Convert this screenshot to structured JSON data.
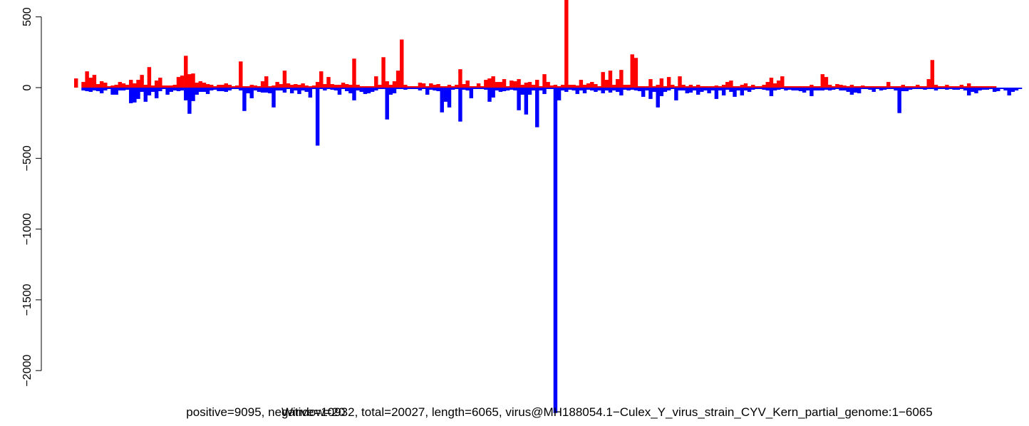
{
  "chart_data": {
    "type": "bar",
    "title": "",
    "xlabel": "positive=9095, negative=10932, total=20027, length=6065, virus@MH188054.1−Culex_Y_virus_strain_CYV_Kern_partial_genome:1−6065",
    "sub_label": "Window=20",
    "ylabel": "",
    "xlim": [
      0,
      6065
    ],
    "ylim": [
      -2300,
      650
    ],
    "yticks": [
      500,
      0,
      -500,
      -1000,
      -1500,
      -2000
    ],
    "ytick_labels": [
      "500",
      "0",
      "−500",
      "−1000",
      "−1500",
      "−2000"
    ],
    "colors": {
      "positive": "#ff0000",
      "negative": "#0000ff"
    },
    "series": [
      {
        "name": "positive",
        "color": "#ff0000",
        "values": [
          65,
          0,
          40,
          115,
          70,
          90,
          25,
          45,
          35,
          10,
          15,
          20,
          40,
          30,
          20,
          55,
          30,
          55,
          90,
          20,
          145,
          15,
          50,
          70,
          15,
          15,
          15,
          20,
          75,
          85,
          225,
          95,
          100,
          35,
          45,
          35,
          25,
          20,
          10,
          20,
          20,
          30,
          20,
          10,
          15,
          185,
          10,
          10,
          20,
          15,
          10,
          45,
          80,
          10,
          15,
          40,
          25,
          120,
          30,
          20,
          25,
          20,
          30,
          15,
          10,
          15,
          40,
          115,
          25,
          75,
          25,
          20,
          20,
          35,
          25,
          20,
          205,
          20,
          10,
          10,
          10,
          10,
          80,
          20,
          215,
          45,
          20,
          45,
          120,
          340,
          20,
          10,
          10,
          10,
          35,
          30,
          10,
          30,
          20,
          25,
          10,
          10,
          20,
          10,
          20,
          130,
          25,
          50,
          10,
          10,
          30,
          10,
          55,
          65,
          80,
          40,
          40,
          60,
          10,
          50,
          45,
          60,
          20,
          35,
          40,
          20,
          55,
          10,
          95,
          40,
          15,
          20,
          10,
          20,
          620,
          20,
          20,
          15,
          55,
          20,
          30,
          40,
          25,
          10,
          110,
          55,
          120,
          20,
          60,
          125,
          20,
          20,
          235,
          210,
          10,
          10,
          10,
          60,
          10,
          20,
          65,
          10,
          75,
          20,
          10,
          80,
          20,
          10,
          20,
          10,
          20,
          10,
          10,
          10,
          10,
          15,
          10,
          20,
          40,
          50,
          10,
          10,
          20,
          30,
          10,
          20,
          10,
          10,
          20,
          40,
          70,
          30,
          50,
          80,
          10,
          10,
          10,
          10,
          10,
          10,
          10,
          20,
          10,
          10,
          95,
          75,
          20,
          10,
          25,
          20,
          15,
          10,
          20,
          10,
          10,
          15,
          10,
          10,
          10,
          10,
          10,
          10,
          40,
          10,
          10,
          10,
          20,
          10,
          10,
          10,
          20,
          10,
          10,
          60,
          195,
          20,
          10,
          10,
          20,
          10,
          10,
          10,
          20,
          10,
          30,
          10,
          10,
          10,
          10,
          10,
          10,
          10
        ]
      },
      {
        "name": "negative",
        "color": "#0000ff",
        "values": [
          0,
          0,
          -20,
          -25,
          -30,
          -20,
          -25,
          -40,
          -20,
          -10,
          -50,
          -50,
          -20,
          -20,
          -15,
          -110,
          -105,
          -80,
          -30,
          -100,
          -55,
          -30,
          -75,
          -25,
          -10,
          -50,
          -30,
          -20,
          -25,
          -20,
          -90,
          -185,
          -95,
          -50,
          -30,
          -30,
          -45,
          -20,
          -15,
          -25,
          -25,
          -30,
          -20,
          -10,
          -10,
          -20,
          -165,
          -40,
          -75,
          -20,
          -30,
          -35,
          -35,
          -40,
          -140,
          -20,
          -20,
          -35,
          -10,
          -40,
          -20,
          -45,
          -20,
          -30,
          -70,
          -10,
          -410,
          -10,
          -20,
          -10,
          -15,
          -20,
          -50,
          -10,
          -25,
          -40,
          -90,
          -20,
          -30,
          -45,
          -40,
          -30,
          -20,
          -10,
          -10,
          -225,
          -50,
          -40,
          -10,
          -10,
          -15,
          -10,
          -10,
          -10,
          -20,
          -10,
          -50,
          -15,
          -20,
          -25,
          -175,
          -100,
          -140,
          -15,
          -10,
          -240,
          -15,
          -20,
          -75,
          -10,
          -10,
          -10,
          -15,
          -100,
          -70,
          -20,
          -30,
          -25,
          -20,
          -15,
          -20,
          -160,
          -50,
          -190,
          -50,
          -20,
          -280,
          -20,
          -45,
          -10,
          -10,
          -2300,
          -90,
          -20,
          -30,
          -15,
          -20,
          -45,
          -20,
          -40,
          -15,
          -20,
          -30,
          -20,
          -40,
          -20,
          -35,
          -20,
          -30,
          -55,
          -15,
          -20,
          -15,
          -20,
          -25,
          -65,
          -20,
          -80,
          -30,
          -140,
          -60,
          -30,
          -20,
          -10,
          -90,
          -20,
          -20,
          -40,
          -35,
          -20,
          -50,
          -30,
          -20,
          -40,
          -20,
          -80,
          -20,
          -55,
          -15,
          -30,
          -65,
          -20,
          -55,
          -20,
          -30,
          -15,
          -10,
          -10,
          -15,
          -20,
          -60,
          -20,
          -15,
          -10,
          -20,
          -15,
          -20,
          -20,
          -25,
          -35,
          -20,
          -60,
          -20,
          -20,
          -20,
          -15,
          -20,
          -15,
          -10,
          -20,
          -20,
          -30,
          -50,
          -35,
          -40,
          -10,
          -10,
          -15,
          -30,
          -10,
          -20,
          -15,
          -10,
          -10,
          -20,
          -180,
          -25,
          -25,
          -15,
          -10,
          -10,
          -10,
          -15,
          -10,
          -10,
          -20,
          -10,
          -10,
          -15,
          -10,
          -15,
          -15,
          -10,
          -20,
          -55,
          -30,
          -40,
          -20,
          -15,
          -15,
          -10,
          -30,
          -25,
          -10,
          -20,
          -55,
          -30,
          -20,
          -10
        ]
      }
    ]
  }
}
